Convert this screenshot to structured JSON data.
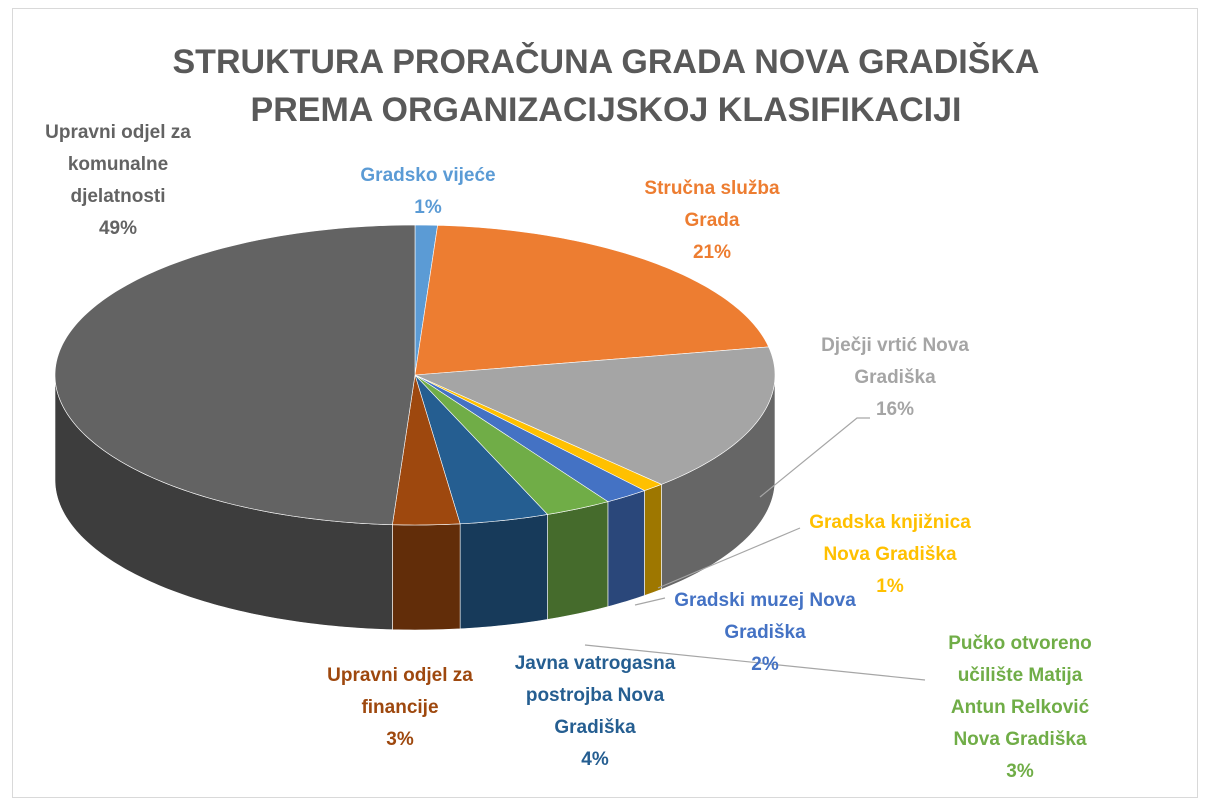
{
  "chart_data": {
    "type": "pie3d",
    "title": "STRUKTURA PRORAČUNA GRADA NOVA GRADIŠKA PREMA ORGANIZACIJSKOJ KLASIFIKACIJI",
    "categories": [
      "Gradsko vijeće",
      "Stručna služba Grada",
      "Dječji vrtić Nova Gradiška",
      "Gradska knjižnica Nova Gradiška",
      "Gradski muzej Nova Gradiška",
      "Pučko otvoreno učilište Matija Antun Relković Nova Gradiška",
      "Javna vatrogasna postrojba Nova Gradiška",
      "Upravni odjel za financije",
      "Upravni odjel za komunalne djelatnosti"
    ],
    "values": [
      1,
      21,
      16,
      1,
      2,
      3,
      4,
      3,
      49
    ],
    "value_labels": [
      "1%",
      "21%",
      "16%",
      "1%",
      "2%",
      "3%",
      "4%",
      "3%",
      "49%"
    ],
    "colors": [
      "#5b9bd5",
      "#ed7d31",
      "#a5a5a5",
      "#ffc000",
      "#4472c4",
      "#70ad47",
      "#255e91",
      "#9e480e",
      "#636363"
    ]
  }
}
